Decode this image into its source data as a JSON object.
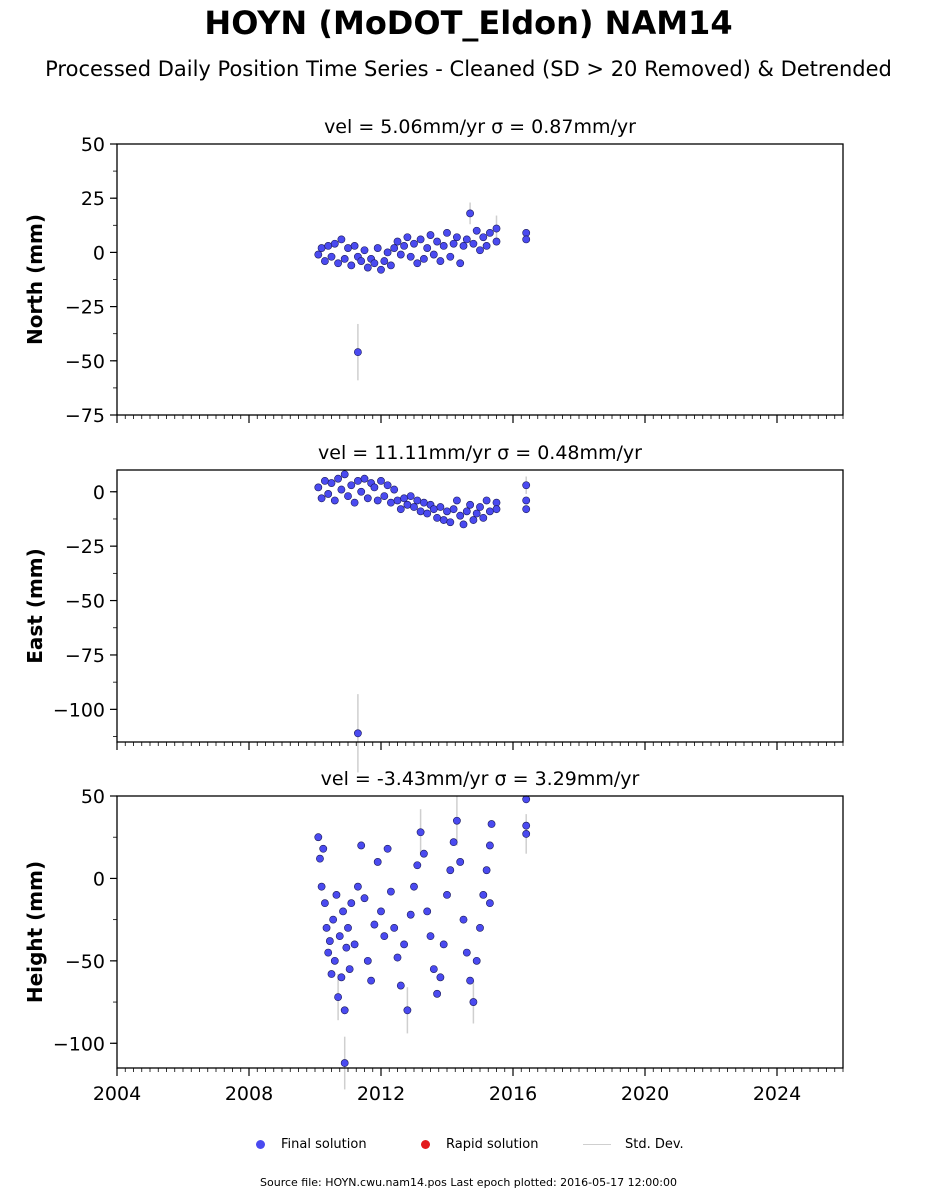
{
  "title": "HOYN (MoDOT_Eldon) NAM14",
  "subtitle": "Processed Daily Position Time Series - Cleaned (SD > 20 Removed) & Detrended",
  "footer": "Source file: HOYN.cwu.nam14.pos  Last epoch plotted: 2016-05-17 12:00:00",
  "legend": {
    "final": "Final solution",
    "rapid": "Rapid solution",
    "std": "Std. Dev."
  },
  "colors": {
    "final": "#4a4af0",
    "rapid": "#e31a1c",
    "std": "#cfcfcf"
  },
  "chart_data": [
    {
      "type": "scatter",
      "title": "vel = 5.06mm/yr   σ = 0.87mm/yr",
      "ylabel": "North (mm)",
      "xlim": [
        2004,
        2026
      ],
      "ylim": [
        -75,
        50
      ],
      "xticks": [
        2004,
        2008,
        2012,
        2016,
        2020,
        2024
      ],
      "yticks": [
        50,
        25,
        0,
        -25,
        -50,
        -75
      ],
      "ytick_labels": [
        "50",
        "25",
        "0",
        "−25",
        "−50",
        "−75"
      ],
      "points": [
        [
          2010.1,
          -1
        ],
        [
          2010.2,
          2
        ],
        [
          2010.3,
          -4
        ],
        [
          2010.4,
          3
        ],
        [
          2010.5,
          -2
        ],
        [
          2010.6,
          4
        ],
        [
          2010.7,
          -5
        ],
        [
          2010.8,
          6
        ],
        [
          2010.9,
          -3
        ],
        [
          2011.0,
          2
        ],
        [
          2011.1,
          -6
        ],
        [
          2011.2,
          3
        ],
        [
          2011.3,
          -2
        ],
        [
          2011.4,
          -4
        ],
        [
          2011.5,
          1
        ],
        [
          2011.6,
          -7
        ],
        [
          2011.7,
          -3
        ],
        [
          2011.8,
          -5
        ],
        [
          2011.9,
          2
        ],
        [
          2012.0,
          -8
        ],
        [
          2012.1,
          -4
        ],
        [
          2012.2,
          0
        ],
        [
          2012.3,
          -6
        ],
        [
          2012.4,
          2
        ],
        [
          2012.5,
          5
        ],
        [
          2012.6,
          -1
        ],
        [
          2012.7,
          3
        ],
        [
          2012.8,
          7
        ],
        [
          2012.9,
          -2
        ],
        [
          2013.0,
          4
        ],
        [
          2013.1,
          -5
        ],
        [
          2013.2,
          6
        ],
        [
          2013.3,
          -3
        ],
        [
          2013.4,
          2
        ],
        [
          2013.5,
          8
        ],
        [
          2013.6,
          -1
        ],
        [
          2013.7,
          5
        ],
        [
          2013.8,
          -4
        ],
        [
          2013.9,
          3
        ],
        [
          2014.0,
          9
        ],
        [
          2014.1,
          -2
        ],
        [
          2014.2,
          4
        ],
        [
          2014.3,
          7
        ],
        [
          2014.4,
          -5
        ],
        [
          2014.5,
          3
        ],
        [
          2014.6,
          6
        ],
        [
          2014.7,
          18
        ],
        [
          2014.8,
          4
        ],
        [
          2014.9,
          10
        ],
        [
          2015.0,
          1
        ],
        [
          2015.1,
          7
        ],
        [
          2015.2,
          3
        ],
        [
          2015.3,
          9
        ],
        [
          2015.5,
          11
        ],
        [
          2015.5,
          5
        ],
        [
          2016.4,
          9
        ],
        [
          2016.4,
          6
        ],
        [
          2011.3,
          -46
        ]
      ],
      "sigma": [
        [
          2011.3,
          -46,
          13
        ],
        [
          2014.7,
          18,
          5
        ],
        [
          2015.5,
          11,
          6
        ]
      ]
    },
    {
      "type": "scatter",
      "title": "vel = 11.11mm/yr   σ = 0.48mm/yr",
      "ylabel": "East (mm)",
      "xlim": [
        2004,
        2026
      ],
      "ylim": [
        -115,
        10
      ],
      "xticks": [
        2004,
        2008,
        2012,
        2016,
        2020,
        2024
      ],
      "yticks": [
        0,
        -25,
        -50,
        -75,
        -100
      ],
      "ytick_labels": [
        "0",
        "−25",
        "−50",
        "−75",
        "−100"
      ],
      "points": [
        [
          2010.1,
          2
        ],
        [
          2010.2,
          -3
        ],
        [
          2010.3,
          5
        ],
        [
          2010.4,
          -1
        ],
        [
          2010.5,
          4
        ],
        [
          2010.6,
          -4
        ],
        [
          2010.7,
          6
        ],
        [
          2010.8,
          1
        ],
        [
          2010.9,
          8
        ],
        [
          2011.0,
          -2
        ],
        [
          2011.1,
          3
        ],
        [
          2011.2,
          -5
        ],
        [
          2011.3,
          5
        ],
        [
          2011.4,
          0
        ],
        [
          2011.5,
          6
        ],
        [
          2011.6,
          -3
        ],
        [
          2011.7,
          4
        ],
        [
          2011.8,
          2
        ],
        [
          2011.9,
          -4
        ],
        [
          2012.0,
          5
        ],
        [
          2012.1,
          -2
        ],
        [
          2012.2,
          3
        ],
        [
          2012.3,
          -5
        ],
        [
          2012.4,
          1
        ],
        [
          2012.5,
          -4
        ],
        [
          2012.6,
          -8
        ],
        [
          2012.7,
          -3
        ],
        [
          2012.8,
          -6
        ],
        [
          2012.9,
          -2
        ],
        [
          2013.0,
          -7
        ],
        [
          2013.1,
          -4
        ],
        [
          2013.2,
          -9
        ],
        [
          2013.3,
          -5
        ],
        [
          2013.4,
          -10
        ],
        [
          2013.5,
          -6
        ],
        [
          2013.6,
          -8
        ],
        [
          2013.7,
          -12
        ],
        [
          2013.8,
          -7
        ],
        [
          2013.9,
          -13
        ],
        [
          2014.0,
          -9
        ],
        [
          2014.1,
          -14
        ],
        [
          2014.2,
          -8
        ],
        [
          2014.3,
          -4
        ],
        [
          2014.4,
          -11
        ],
        [
          2014.5,
          -15
        ],
        [
          2014.6,
          -9
        ],
        [
          2014.7,
          -6
        ],
        [
          2014.8,
          -13
        ],
        [
          2014.9,
          -10
        ],
        [
          2015.0,
          -7
        ],
        [
          2015.1,
          -12
        ],
        [
          2015.2,
          -4
        ],
        [
          2015.3,
          -9
        ],
        [
          2015.5,
          -5
        ],
        [
          2015.5,
          -8
        ],
        [
          2016.4,
          3
        ],
        [
          2016.4,
          -4
        ],
        [
          2016.4,
          -8
        ],
        [
          2011.3,
          -111
        ]
      ],
      "sigma": [
        [
          2011.3,
          -111,
          18
        ],
        [
          2016.4,
          3,
          4
        ]
      ]
    },
    {
      "type": "scatter",
      "title": "vel = -3.43mm/yr   σ = 3.29mm/yr",
      "ylabel": "Height (mm)",
      "xlim": [
        2004,
        2026
      ],
      "ylim": [
        -115,
        50
      ],
      "xticks": [
        2004,
        2008,
        2012,
        2016,
        2020,
        2024
      ],
      "xtick_labels": [
        "2004",
        "2008",
        "2012",
        "2016",
        "2020",
        "2024"
      ],
      "yticks": [
        50,
        0,
        -50,
        -100
      ],
      "ytick_labels": [
        "50",
        "0",
        "−50",
        "−100"
      ],
      "points": [
        [
          2010.1,
          25
        ],
        [
          2010.15,
          12
        ],
        [
          2010.2,
          -5
        ],
        [
          2010.25,
          18
        ],
        [
          2010.3,
          -15
        ],
        [
          2010.35,
          -30
        ],
        [
          2010.4,
          -45
        ],
        [
          2010.45,
          -38
        ],
        [
          2010.5,
          -58
        ],
        [
          2010.55,
          -25
        ],
        [
          2010.6,
          -50
        ],
        [
          2010.65,
          -10
        ],
        [
          2010.7,
          -72
        ],
        [
          2010.75,
          -35
        ],
        [
          2010.8,
          -60
        ],
        [
          2010.85,
          -20
        ],
        [
          2010.9,
          -80
        ],
        [
          2010.95,
          -42
        ],
        [
          2011.0,
          -30
        ],
        [
          2011.05,
          -55
        ],
        [
          2011.1,
          -15
        ],
        [
          2011.2,
          -40
        ],
        [
          2011.3,
          -5
        ],
        [
          2011.4,
          20
        ],
        [
          2011.5,
          -12
        ],
        [
          2011.6,
          -50
        ],
        [
          2011.7,
          -62
        ],
        [
          2011.8,
          -28
        ],
        [
          2011.9,
          10
        ],
        [
          2012.0,
          -20
        ],
        [
          2012.1,
          -35
        ],
        [
          2012.2,
          18
        ],
        [
          2012.3,
          -8
        ],
        [
          2012.4,
          -30
        ],
        [
          2012.5,
          -48
        ],
        [
          2012.6,
          -65
        ],
        [
          2012.7,
          -40
        ],
        [
          2012.8,
          -80
        ],
        [
          2012.9,
          -22
        ],
        [
          2013.0,
          -5
        ],
        [
          2013.1,
          8
        ],
        [
          2013.2,
          28
        ],
        [
          2013.3,
          15
        ],
        [
          2013.4,
          -20
        ],
        [
          2013.5,
          -35
        ],
        [
          2013.6,
          -55
        ],
        [
          2013.7,
          -70
        ],
        [
          2013.8,
          -60
        ],
        [
          2013.9,
          -40
        ],
        [
          2014.0,
          -10
        ],
        [
          2014.1,
          5
        ],
        [
          2014.2,
          22
        ],
        [
          2014.3,
          35
        ],
        [
          2014.4,
          10
        ],
        [
          2014.5,
          -25
        ],
        [
          2014.6,
          -45
        ],
        [
          2014.7,
          -62
        ],
        [
          2014.8,
          -75
        ],
        [
          2014.9,
          -50
        ],
        [
          2015.0,
          -30
        ],
        [
          2015.1,
          -10
        ],
        [
          2015.2,
          5
        ],
        [
          2015.3,
          20
        ],
        [
          2015.35,
          33
        ],
        [
          2015.3,
          -15
        ],
        [
          2016.4,
          48
        ],
        [
          2016.4,
          32
        ],
        [
          2016.4,
          27
        ],
        [
          2010.9,
          -112
        ]
      ],
      "sigma": [
        [
          2010.9,
          -112,
          16
        ],
        [
          2014.3,
          35,
          15
        ],
        [
          2013.2,
          28,
          14
        ],
        [
          2012.8,
          -80,
          14
        ],
        [
          2010.7,
          -72,
          14
        ],
        [
          2014.8,
          -75,
          13
        ],
        [
          2016.4,
          27,
          12
        ]
      ]
    }
  ]
}
